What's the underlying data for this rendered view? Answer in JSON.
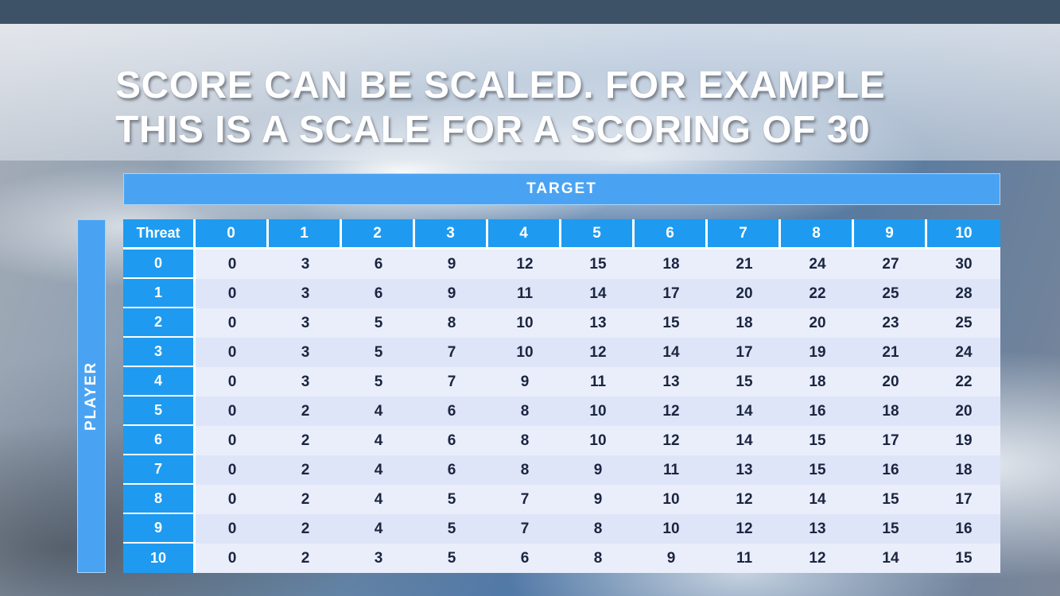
{
  "slide": {
    "title_line1": "SCORE CAN BE SCALED. FOR EXAMPLE",
    "title_line2": "THIS IS A SCALE FOR A SCORING OF 30"
  },
  "table": {
    "target_label": "TARGET",
    "player_label": "PLAYER",
    "corner_label": "Threat",
    "column_headers": [
      "0",
      "1",
      "2",
      "3",
      "4",
      "5",
      "6",
      "7",
      "8",
      "9",
      "10"
    ],
    "rows": [
      {
        "threat": "0",
        "values": [
          "0",
          "3",
          "6",
          "9",
          "12",
          "15",
          "18",
          "21",
          "24",
          "27",
          "30"
        ]
      },
      {
        "threat": "1",
        "values": [
          "0",
          "3",
          "6",
          "9",
          "11",
          "14",
          "17",
          "20",
          "22",
          "25",
          "28"
        ]
      },
      {
        "threat": "2",
        "values": [
          "0",
          "3",
          "5",
          "8",
          "10",
          "13",
          "15",
          "18",
          "20",
          "23",
          "25"
        ]
      },
      {
        "threat": "3",
        "values": [
          "0",
          "3",
          "5",
          "7",
          "10",
          "12",
          "14",
          "17",
          "19",
          "21",
          "24"
        ]
      },
      {
        "threat": "4",
        "values": [
          "0",
          "3",
          "5",
          "7",
          "9",
          "11",
          "13",
          "15",
          "18",
          "20",
          "22"
        ]
      },
      {
        "threat": "5",
        "values": [
          "0",
          "2",
          "4",
          "6",
          "8",
          "10",
          "12",
          "14",
          "16",
          "18",
          "20"
        ]
      },
      {
        "threat": "6",
        "values": [
          "0",
          "2",
          "4",
          "6",
          "8",
          "10",
          "12",
          "14",
          "15",
          "17",
          "19"
        ]
      },
      {
        "threat": "7",
        "values": [
          "0",
          "2",
          "4",
          "6",
          "8",
          "9",
          "11",
          "13",
          "15",
          "16",
          "18"
        ]
      },
      {
        "threat": "8",
        "values": [
          "0",
          "2",
          "4",
          "5",
          "7",
          "9",
          "10",
          "12",
          "14",
          "15",
          "17"
        ]
      },
      {
        "threat": "9",
        "values": [
          "0",
          "2",
          "4",
          "5",
          "7",
          "8",
          "10",
          "12",
          "13",
          "15",
          "16"
        ]
      },
      {
        "threat": "10",
        "values": [
          "0",
          "2",
          "3",
          "5",
          "6",
          "8",
          "9",
          "11",
          "12",
          "14",
          "15"
        ]
      }
    ]
  },
  "colors": {
    "top_strip": "#3D5266",
    "band_blue": "#4AA3F2",
    "header_blue": "#1E9BF0",
    "row_light": "#EAEEFB",
    "row_dark": "#DEE5F8",
    "cell_text": "#1B2540"
  }
}
